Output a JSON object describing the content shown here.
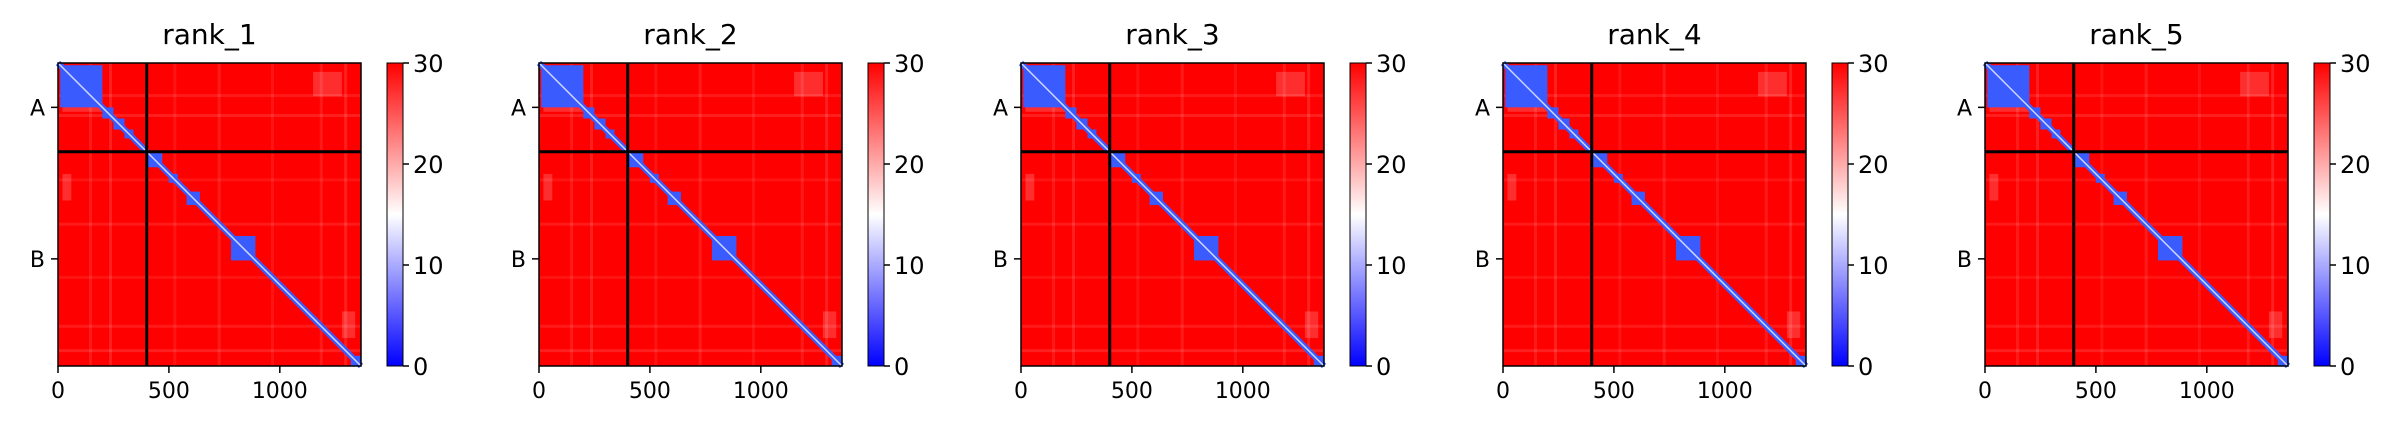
{
  "chart_data": [
    {
      "type": "heatmap",
      "title": "rank_1",
      "xticks": [
        "0",
        "500",
        "1000"
      ],
      "yticks": [
        "A",
        "B"
      ],
      "xlim": [
        0,
        1366
      ],
      "chain_boundary": 400,
      "colorbar": {
        "min": 0,
        "max": 30,
        "ticks": [
          "0",
          "10",
          "20",
          "30"
        ],
        "colormap": [
          "#0000ff",
          "#ffffff",
          "#ff0000"
        ]
      }
    },
    {
      "type": "heatmap",
      "title": "rank_2",
      "xticks": [
        "0",
        "500",
        "1000"
      ],
      "yticks": [
        "A",
        "B"
      ],
      "xlim": [
        0,
        1366
      ],
      "chain_boundary": 400,
      "colorbar": {
        "min": 0,
        "max": 30,
        "ticks": [
          "0",
          "10",
          "20",
          "30"
        ],
        "colormap": [
          "#0000ff",
          "#ffffff",
          "#ff0000"
        ]
      }
    },
    {
      "type": "heatmap",
      "title": "rank_3",
      "xticks": [
        "0",
        "500",
        "1000"
      ],
      "yticks": [
        "A",
        "B"
      ],
      "xlim": [
        0,
        1366
      ],
      "chain_boundary": 400,
      "colorbar": {
        "min": 0,
        "max": 30,
        "ticks": [
          "0",
          "10",
          "20",
          "30"
        ],
        "colormap": [
          "#0000ff",
          "#ffffff",
          "#ff0000"
        ]
      }
    },
    {
      "type": "heatmap",
      "title": "rank_4",
      "xticks": [
        "0",
        "500",
        "1000"
      ],
      "yticks": [
        "A",
        "B"
      ],
      "xlim": [
        0,
        1366
      ],
      "chain_boundary": 400,
      "colorbar": {
        "min": 0,
        "max": 30,
        "ticks": [
          "0",
          "10",
          "20",
          "30"
        ],
        "colormap": [
          "#0000ff",
          "#ffffff",
          "#ff0000"
        ]
      }
    },
    {
      "type": "heatmap",
      "title": "rank_5",
      "xticks": [
        "0",
        "500",
        "1000"
      ],
      "yticks": [
        "A",
        "B"
      ],
      "xlim": [
        0,
        1366
      ],
      "chain_boundary": 400,
      "colorbar": {
        "min": 0,
        "max": 30,
        "ticks": [
          "0",
          "10",
          "20",
          "30"
        ],
        "colormap": [
          "#0000ff",
          "#ffffff",
          "#ff0000"
        ]
      }
    }
  ],
  "colors": {
    "high": "#ff0000",
    "mid": "#ffffff",
    "low": "#0000ff",
    "low_cell": "#3a5cff",
    "frame": "#000000"
  }
}
